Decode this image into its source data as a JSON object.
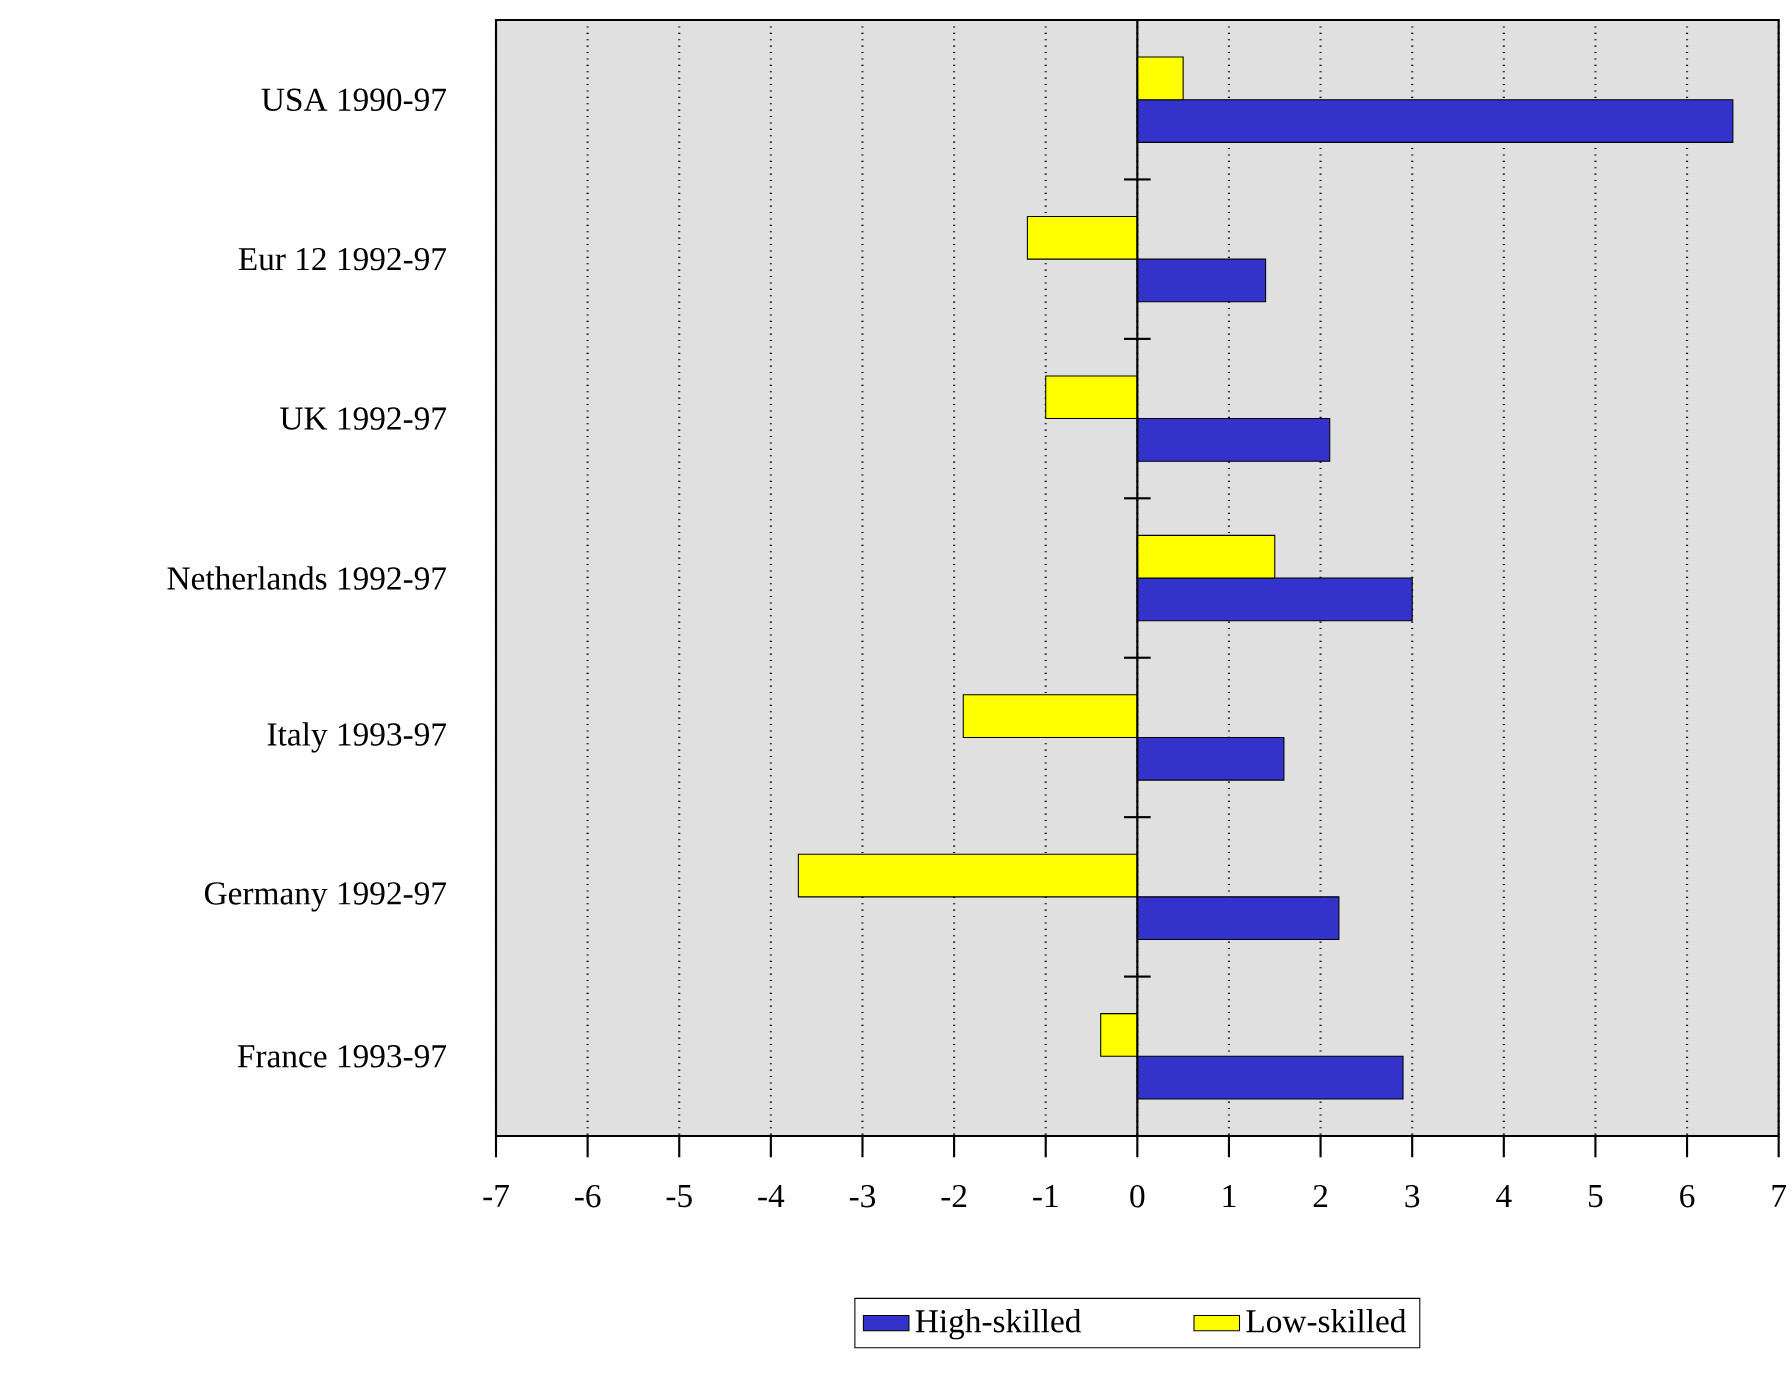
{
  "chart_data": {
    "type": "bar",
    "orientation": "horizontal",
    "categories": [
      "USA 1990-97",
      "Eur 12 1992-97",
      "UK 1992-97",
      "Netherlands 1992-97",
      "Italy 1993-97",
      "Germany 1992-97",
      "France 1993-97"
    ],
    "series": [
      {
        "name": "High-skilled",
        "color": "#3333cc",
        "values": [
          6.5,
          1.4,
          2.1,
          3.0,
          1.6,
          2.2,
          2.9
        ]
      },
      {
        "name": "Low-skilled",
        "color": "#ffff00",
        "values": [
          0.5,
          -1.2,
          -1.0,
          1.5,
          -1.9,
          -3.7,
          -0.4
        ]
      }
    ],
    "xlim": [
      -7,
      7
    ],
    "xticks": [
      -7,
      -6,
      -5,
      -4,
      -3,
      -2,
      -1,
      0,
      1,
      2,
      3,
      4,
      5,
      6,
      7
    ],
    "grid": "x",
    "legend": "bottom"
  }
}
